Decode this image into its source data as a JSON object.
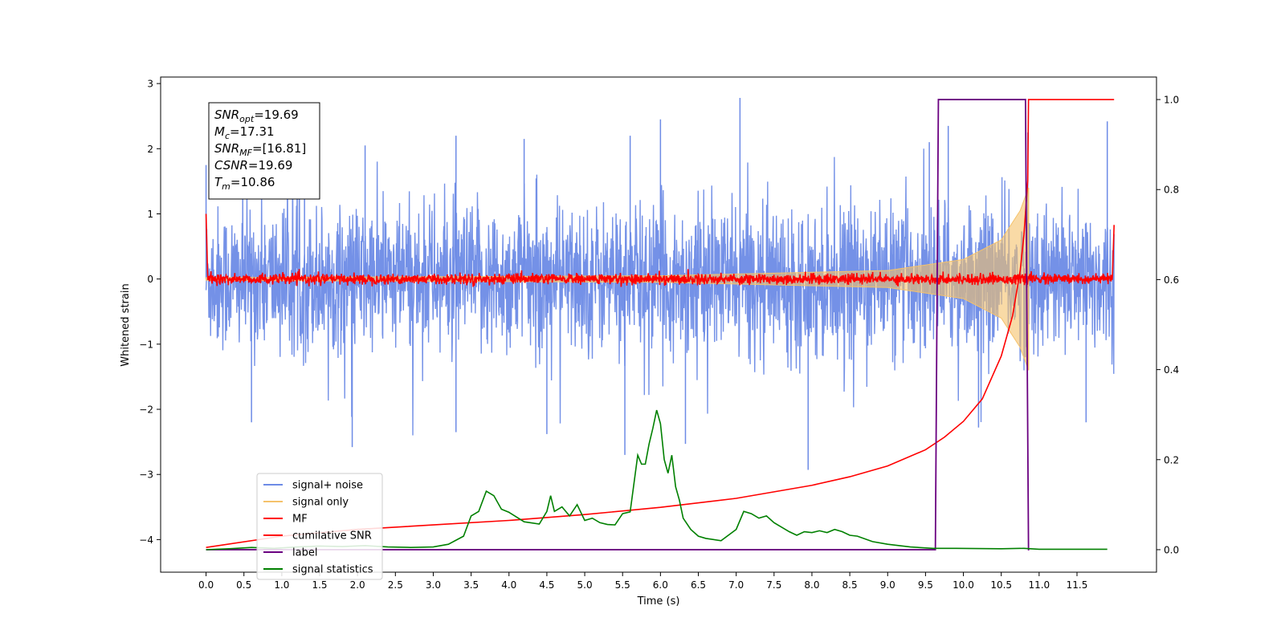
{
  "chart_data": {
    "type": "line",
    "xlabel": "Time (s)",
    "ylabel": "Whitened strain",
    "xlim": [
      -0.6,
      12.55
    ],
    "ylim": [
      -4.5,
      3.1
    ],
    "y2lim": [
      -0.05,
      1.05
    ],
    "xticks": [
      0.0,
      0.5,
      1.0,
      1.5,
      2.0,
      2.5,
      3.0,
      3.5,
      4.0,
      4.5,
      5.0,
      5.5,
      6.0,
      6.5,
      7.0,
      7.5,
      8.0,
      8.5,
      9.0,
      9.5,
      10.0,
      10.5,
      11.0,
      11.5
    ],
    "xtick_labels": [
      "0.0",
      "0.5",
      "1.0",
      "1.5",
      "2.0",
      "2.5",
      "3.0",
      "3.5",
      "4.0",
      "4.5",
      "5.0",
      "5.5",
      "6.0",
      "6.5",
      "7.0",
      "7.5",
      "8.0",
      "8.5",
      "9.0",
      "9.5",
      "10.0",
      "10.5",
      "11.0",
      "11.5"
    ],
    "yticks": [
      3,
      2,
      1,
      0,
      -1,
      -2,
      -3,
      -4
    ],
    "ytick_labels": [
      "3",
      "2",
      "1",
      "0",
      "−1",
      "−2",
      "−3",
      "−4"
    ],
    "y2ticks": [
      1.0,
      0.8,
      0.6,
      0.4,
      0.2,
      0.0
    ],
    "y2tick_labels": [
      "1.0",
      "0.8",
      "0.6",
      "0.4",
      "0.2",
      "0.0"
    ],
    "grid": false,
    "legend_position": "lower-left",
    "annotation": {
      "lines": [
        {
          "sym": "SNR",
          "sub": "opt",
          "val": "=19.69"
        },
        {
          "sym": "M",
          "sub": "c",
          "val": "=17.31"
        },
        {
          "sym": "SNR",
          "sub": "MF",
          "val": "=[16.81]"
        },
        {
          "sym": "CSNR",
          "sub": "",
          "val": "=19.69"
        },
        {
          "sym": "T",
          "sub": "m",
          "val": "=10.86"
        }
      ]
    },
    "series": [
      {
        "name": "signal+ noise",
        "axis": "left",
        "color": "#6d8be6",
        "description_free": true,
        "x_range": [
          0.0,
          11.99
        ],
        "noise_sigma": 0.55,
        "peaks": [
          {
            "x": 0.0,
            "y": 1.75
          },
          {
            "x": 1.3,
            "y": 1.9
          },
          {
            "x": 2.1,
            "y": 2.05
          },
          {
            "x": 3.3,
            "y": 2.2
          },
          {
            "x": 4.2,
            "y": 2.15
          },
          {
            "x": 5.6,
            "y": 2.2
          },
          {
            "x": 6.0,
            "y": 2.45
          },
          {
            "x": 7.05,
            "y": 2.78
          },
          {
            "x": 9.55,
            "y": 2.1
          },
          {
            "x": 9.8,
            "y": 2.35
          },
          {
            "x": 10.85,
            "y": 2.25
          },
          {
            "x": 11.9,
            "y": 2.42
          },
          {
            "x": 0.6,
            "y": -2.2
          },
          {
            "x": 1.93,
            "y": -2.58
          },
          {
            "x": 3.3,
            "y": -2.35
          },
          {
            "x": 4.5,
            "y": -2.38
          },
          {
            "x": 5.53,
            "y": -2.7
          },
          {
            "x": 6.33,
            "y": -2.53
          },
          {
            "x": 7.95,
            "y": -2.93
          },
          {
            "x": 10.2,
            "y": -2.28
          },
          {
            "x": 11.62,
            "y": -2.2
          }
        ]
      },
      {
        "name": "signal only",
        "axis": "left",
        "color": "#f5c26b",
        "chirp_end": 10.86,
        "amplitude": [
          [
            0.0,
            0.02
          ],
          [
            6.0,
            0.05
          ],
          [
            9.0,
            0.13
          ],
          [
            10.0,
            0.3
          ],
          [
            10.5,
            0.6
          ],
          [
            10.75,
            1.05
          ],
          [
            10.86,
            1.4
          ]
        ]
      },
      {
        "name": "MF",
        "axis": "left",
        "color": "#ff0000",
        "x_range": [
          0.0,
          11.99
        ],
        "amplitude": 0.08,
        "edges": [
          [
            0.0,
            1.0
          ],
          [
            0.02,
            0.1
          ],
          [
            11.97,
            0.1
          ],
          [
            11.99,
            0.83
          ]
        ]
      },
      {
        "name": "cumilative SNR",
        "axis": "right",
        "color": "#ff0000",
        "x": [
          0.0,
          1.0,
          2.0,
          3.0,
          4.0,
          5.0,
          6.0,
          7.0,
          8.0,
          8.5,
          9.0,
          9.5,
          9.75,
          10.0,
          10.25,
          10.5,
          10.65,
          10.75,
          10.8,
          10.85,
          10.86,
          11.99
        ],
        "values": [
          0.005,
          0.03,
          0.045,
          0.055,
          0.065,
          0.078,
          0.094,
          0.114,
          0.143,
          0.162,
          0.186,
          0.222,
          0.25,
          0.285,
          0.335,
          0.43,
          0.52,
          0.62,
          0.7,
          0.82,
          1.0,
          1.0
        ]
      },
      {
        "name": "label",
        "axis": "right",
        "color": "#6a0080",
        "x": [
          0.0,
          9.63,
          9.67,
          10.82,
          10.86,
          11.99
        ],
        "values": [
          0.0,
          0.0,
          1.0,
          1.0,
          0.0,
          0.0
        ],
        "x_end": 10.87
      },
      {
        "name": "signal statistics",
        "axis": "right",
        "color": "#008000",
        "x": [
          0.0,
          0.3,
          0.6,
          0.9,
          1.2,
          1.5,
          1.8,
          2.1,
          2.4,
          2.7,
          3.0,
          3.2,
          3.4,
          3.5,
          3.6,
          3.7,
          3.8,
          3.9,
          4.0,
          4.2,
          4.4,
          4.5,
          4.55,
          4.6,
          4.7,
          4.8,
          4.9,
          5.0,
          5.1,
          5.2,
          5.3,
          5.4,
          5.5,
          5.6,
          5.7,
          5.75,
          5.8,
          5.85,
          5.9,
          5.95,
          6.0,
          6.05,
          6.1,
          6.15,
          6.2,
          6.25,
          6.3,
          6.4,
          6.5,
          6.6,
          6.8,
          7.0,
          7.1,
          7.2,
          7.3,
          7.4,
          7.5,
          7.6,
          7.7,
          7.8,
          7.9,
          8.0,
          8.1,
          8.2,
          8.3,
          8.4,
          8.5,
          8.6,
          8.8,
          9.0,
          9.3,
          9.6,
          9.9,
          10.5,
          10.8,
          11.0,
          11.3,
          11.6,
          11.9
        ],
        "values": [
          0.0,
          0.002,
          0.005,
          0.003,
          0.006,
          0.008,
          0.007,
          0.009,
          0.006,
          0.005,
          0.006,
          0.012,
          0.03,
          0.075,
          0.085,
          0.13,
          0.12,
          0.09,
          0.083,
          0.062,
          0.057,
          0.085,
          0.12,
          0.085,
          0.095,
          0.075,
          0.1,
          0.065,
          0.07,
          0.06,
          0.056,
          0.055,
          0.08,
          0.084,
          0.21,
          0.19,
          0.19,
          0.235,
          0.27,
          0.31,
          0.28,
          0.2,
          0.17,
          0.21,
          0.14,
          0.11,
          0.07,
          0.045,
          0.03,
          0.025,
          0.02,
          0.045,
          0.085,
          0.08,
          0.07,
          0.075,
          0.06,
          0.05,
          0.04,
          0.032,
          0.04,
          0.038,
          0.042,
          0.038,
          0.045,
          0.04,
          0.032,
          0.03,
          0.018,
          0.012,
          0.006,
          0.003,
          0.003,
          0.002,
          0.003,
          0.001,
          0.001,
          0.001,
          0.001
        ]
      }
    ]
  }
}
